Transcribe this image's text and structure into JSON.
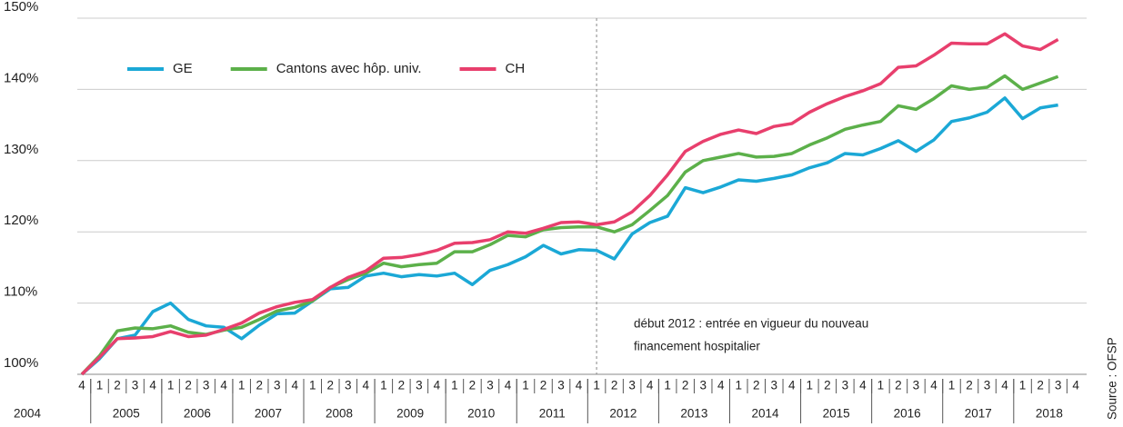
{
  "chart_data": {
    "type": "line",
    "categories": [
      "4",
      "1",
      "2",
      "3",
      "4",
      "1",
      "2",
      "3",
      "4",
      "1",
      "2",
      "3",
      "4",
      "1",
      "2",
      "3",
      "4",
      "1",
      "2",
      "3",
      "4",
      "1",
      "2",
      "3",
      "4",
      "1",
      "2",
      "3",
      "4",
      "1",
      "2",
      "3",
      "4",
      "1",
      "2",
      "3",
      "4",
      "1",
      "2",
      "3",
      "4",
      "1",
      "2",
      "3",
      "4",
      "1",
      "2",
      "3",
      "4",
      "1",
      "2",
      "3",
      "4",
      "1",
      "2",
      "3",
      "4"
    ],
    "years": [
      "2004",
      "2005",
      "2006",
      "2007",
      "2008",
      "2009",
      "2010",
      "2011",
      "2012",
      "2013",
      "2014",
      "2015",
      "2016",
      "2017",
      "2018"
    ],
    "series": [
      {
        "name": "GE",
        "color": "#1ba8d6",
        "values": [
          100,
          102.2,
          105,
          105.5,
          108.8,
          110,
          107.7,
          106.8,
          106.6,
          105,
          106.9,
          108.5,
          108.6,
          110.3,
          112,
          112.2,
          113.8,
          114.2,
          113.7,
          114,
          113.8,
          114.2,
          112.6,
          114.6,
          115.4,
          116.5,
          118.1,
          116.9,
          117.5,
          117.4,
          116.2,
          119.7,
          121.3,
          122.2,
          126.2,
          125.5,
          126.3,
          127.3,
          127.1,
          127.5,
          128,
          129,
          129.7,
          131,
          130.8,
          131.7,
          132.8,
          131.3,
          132.9,
          135.5,
          136,
          136.8,
          138.8,
          135.9,
          137.4,
          137.8,
          null
        ]
      },
      {
        "name": "Cantons avec hôp. univ.",
        "color": "#5cb04a",
        "values": [
          100,
          102.6,
          106.1,
          106.5,
          106.4,
          106.8,
          105.9,
          105.6,
          106.2,
          106.6,
          107.7,
          108.9,
          109.4,
          110.3,
          112.2,
          113.3,
          114.2,
          115.6,
          115.1,
          115.4,
          115.6,
          117.2,
          117.2,
          118.2,
          119.5,
          119.3,
          120.3,
          120.6,
          120.7,
          120.7,
          120,
          121,
          123,
          125.1,
          128.4,
          130,
          130.5,
          131,
          130.5,
          130.6,
          131,
          132.2,
          133.2,
          134.4,
          135,
          135.5,
          137.7,
          137.2,
          138.7,
          140.5,
          140,
          140.3,
          141.9,
          140,
          140.9,
          141.8,
          null
        ]
      },
      {
        "name": "CH",
        "color": "#e83f6d",
        "values": [
          100,
          102.4,
          105,
          105.1,
          105.3,
          106,
          105.3,
          105.5,
          106.3,
          107.2,
          108.6,
          109.5,
          110.1,
          110.5,
          112.2,
          113.6,
          114.5,
          116.3,
          116.4,
          116.8,
          117.4,
          118.4,
          118.5,
          118.9,
          120,
          119.8,
          120.5,
          121.3,
          121.4,
          121,
          121.4,
          122.8,
          125.1,
          128,
          131.3,
          132.7,
          133.7,
          134.3,
          133.8,
          134.8,
          135.2,
          136.8,
          138,
          139,
          139.8,
          140.8,
          143.1,
          143.3,
          144.8,
          146.5,
          146.4,
          146.4,
          147.8,
          146.1,
          145.6,
          147,
          null
        ]
      }
    ],
    "ylim": [
      100,
      150
    ],
    "yticks": [
      {
        "value": 100,
        "label": "100%"
      },
      {
        "value": 110,
        "label": "110%"
      },
      {
        "value": 120,
        "label": "120%"
      },
      {
        "value": 130,
        "label": "130%"
      },
      {
        "value": 140,
        "label": "140%"
      },
      {
        "value": 150,
        "label": "150%"
      }
    ],
    "grid": true,
    "annotation": {
      "lines": [
        "début 2012 : entrée en vigueur du nouveau",
        "financement hospitalier"
      ],
      "x": 29
    },
    "source": "Source : OFSP"
  }
}
